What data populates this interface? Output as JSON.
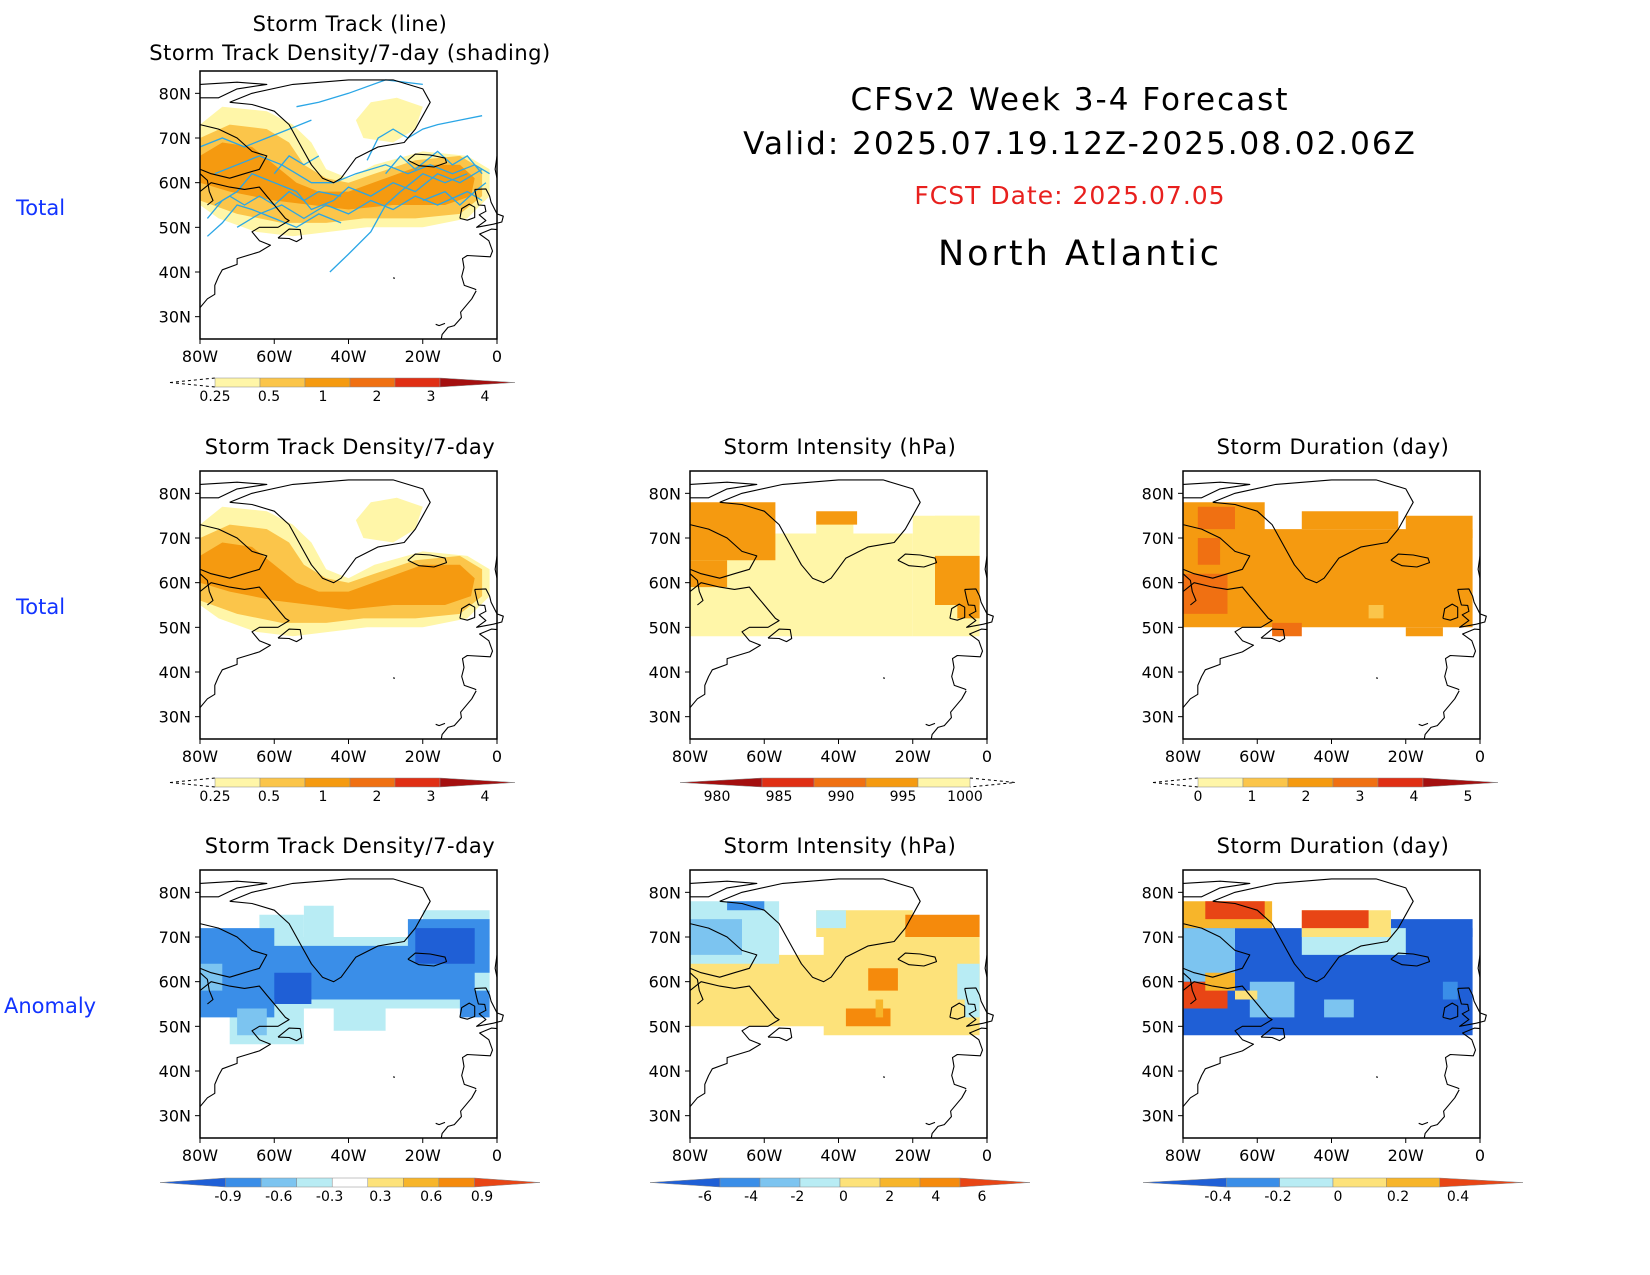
{
  "header": {
    "title": "CFSv2 Week 3-4 Forecast",
    "valid": "Valid: 2025.07.19.12Z-2025.08.02.06Z",
    "fcst": "FCST Date: 2025.07.05",
    "region": "North Atlantic",
    "fcst_color": "#e8201e"
  },
  "rows": [
    {
      "label": "Total",
      "color": "#1133ff"
    },
    {
      "label": "Total",
      "color": "#1133ff"
    },
    {
      "label": "Anomaly",
      "color": "#1133ff"
    }
  ],
  "panels": [
    {
      "id": "p1",
      "title": "Storm Track (line)\nStorm Track Density/7-day (shading)"
    },
    {
      "id": "p2",
      "title": "Storm Track Density/7-day"
    },
    {
      "id": "p3",
      "title": "Storm Intensity (hPa)"
    },
    {
      "id": "p4",
      "title": "Storm Duration (day)"
    },
    {
      "id": "p5",
      "title": "Storm Track Density/7-day"
    },
    {
      "id": "p6",
      "title": "Storm Intensity (hPa)"
    },
    {
      "id": "p7",
      "title": "Storm Duration (day)"
    }
  ],
  "axes": {
    "lat_ticks": [
      "80N",
      "70N",
      "60N",
      "50N",
      "40N",
      "30N"
    ],
    "lon_ticks": [
      "80W",
      "60W",
      "40W",
      "20W",
      "0"
    ],
    "lat_range": [
      25,
      85
    ],
    "lon_range": [
      -80,
      0
    ]
  },
  "colorbars": {
    "density_total": {
      "labels": [
        "0.25",
        "0.5",
        "1",
        "2",
        "3",
        "4"
      ],
      "colors": [
        "#fff6a8",
        "#fbc54a",
        "#f59a10",
        "#f07012",
        "#e02f14",
        "#a40f0f"
      ]
    },
    "intensity_total": {
      "labels": [
        "980",
        "985",
        "990",
        "995",
        "1000"
      ],
      "colors": [
        "#a40f0f",
        "#e02f14",
        "#f07012",
        "#f59a10",
        "#fff6a8"
      ]
    },
    "duration_total": {
      "labels": [
        "0",
        "1",
        "2",
        "3",
        "4",
        "5"
      ],
      "colors": [
        "#fff6a8",
        "#fbc54a",
        "#f59a10",
        "#f07012",
        "#e02f14",
        "#a40f0f"
      ]
    },
    "density_anom": {
      "labels": [
        "-0.9",
        "-0.6",
        "-0.3",
        "0.3",
        "0.6",
        "0.9"
      ],
      "colors": [
        "#1f5fd6",
        "#3a8ee8",
        "#7cc4f0",
        "#b8ecf4",
        "#ffffff",
        "#fde27a",
        "#f7b52a",
        "#f58a0c",
        "#e84515"
      ]
    },
    "intensity_anom": {
      "labels": [
        "-6",
        "-4",
        "-2",
        "0",
        "2",
        "4",
        "6"
      ],
      "colors": [
        "#1f5fd6",
        "#3a8ee8",
        "#7cc4f0",
        "#b8ecf4",
        "#fde27a",
        "#f7b52a",
        "#f58a0c",
        "#e84515"
      ]
    },
    "duration_anom": {
      "labels": [
        "-0.4",
        "-0.2",
        "0",
        "0.2",
        "0.4"
      ],
      "colors": [
        "#1f5fd6",
        "#3a8ee8",
        "#b8ecf4",
        "#fde27a",
        "#f7b52a",
        "#e84515"
      ]
    }
  }
}
